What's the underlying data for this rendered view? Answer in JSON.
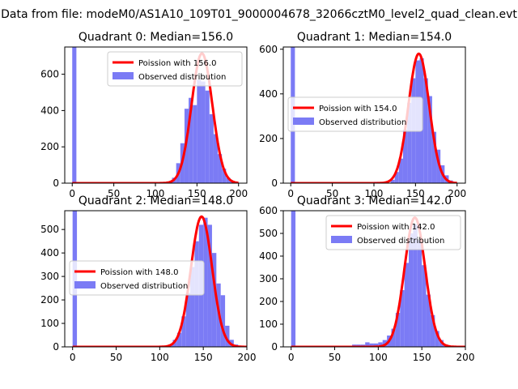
{
  "figure_title": "Data from file: modeM0/AS1A10_109T01_9000004678_32066cztM0_level2_quad_clean.evt",
  "colors": {
    "histogram": "#7b7bf5",
    "poisson_line": "#ff0000",
    "axes": "#000000",
    "background": "#ffffff"
  },
  "chart_data": [
    {
      "type": "bar",
      "title": "Quadrant 0: Median=156.0",
      "legend_position": "top-right",
      "legend": {
        "line_label": "Poission with 156.0",
        "hist_label": "Observed distribution"
      },
      "xlim": [
        -9,
        210
      ],
      "ylim": [
        0,
        750
      ],
      "xticks": [
        0,
        50,
        100,
        150,
        200
      ],
      "yticks": [
        0,
        200,
        400,
        600
      ],
      "mean": 156.0,
      "poisson_peak": 715,
      "zero_bin_count": 750,
      "bins": [
        [
          110,
          2
        ],
        [
          115,
          10
        ],
        [
          120,
          30
        ],
        [
          125,
          110
        ],
        [
          130,
          220
        ],
        [
          135,
          410
        ],
        [
          140,
          470
        ],
        [
          145,
          430
        ],
        [
          150,
          570
        ],
        [
          155,
          560
        ],
        [
          160,
          510
        ],
        [
          165,
          380
        ],
        [
          170,
          270
        ],
        [
          175,
          160
        ],
        [
          180,
          80
        ],
        [
          185,
          30
        ],
        [
          190,
          10
        ],
        [
          195,
          3
        ]
      ]
    },
    {
      "type": "bar",
      "title": "Quadrant 1: Median=154.0",
      "legend_position": "center-left",
      "legend": {
        "line_label": "Poission with 154.0",
        "hist_label": "Observed distribution"
      },
      "xlim": [
        -9,
        210
      ],
      "ylim": [
        0,
        610
      ],
      "xticks": [
        0,
        50,
        100,
        150,
        200
      ],
      "yticks": [
        0,
        200,
        400,
        600
      ],
      "mean": 154.0,
      "poisson_peak": 580,
      "zero_bin_count": 610,
      "bins": [
        [
          95,
          4
        ],
        [
          100,
          6
        ],
        [
          110,
          3
        ],
        [
          120,
          15
        ],
        [
          125,
          50
        ],
        [
          130,
          110
        ],
        [
          135,
          240
        ],
        [
          140,
          360
        ],
        [
          145,
          470
        ],
        [
          150,
          550
        ],
        [
          155,
          560
        ],
        [
          160,
          470
        ],
        [
          165,
          390
        ],
        [
          170,
          230
        ],
        [
          175,
          150
        ],
        [
          180,
          80
        ],
        [
          185,
          35
        ],
        [
          190,
          12
        ],
        [
          195,
          3
        ]
      ]
    },
    {
      "type": "bar",
      "title": "Quadrant 2: Median=148.0",
      "legend_position": "center-left",
      "legend": {
        "line_label": "Poission with 148.0",
        "hist_label": "Observed distribution"
      },
      "xlim": [
        -9,
        200
      ],
      "ylim": [
        0,
        580
      ],
      "xticks": [
        0,
        50,
        100,
        150,
        200
      ],
      "yticks": [
        0,
        100,
        200,
        300,
        400,
        500
      ],
      "mean": 148.0,
      "poisson_peak": 555,
      "zero_bin_count": 580,
      "bins": [
        [
          110,
          10
        ],
        [
          115,
          30
        ],
        [
          120,
          60
        ],
        [
          125,
          130
        ],
        [
          130,
          230
        ],
        [
          135,
          340
        ],
        [
          140,
          450
        ],
        [
          145,
          520
        ],
        [
          150,
          550
        ],
        [
          155,
          520
        ],
        [
          160,
          400
        ],
        [
          165,
          270
        ],
        [
          170,
          220
        ],
        [
          175,
          90
        ],
        [
          180,
          30
        ],
        [
          185,
          10
        ]
      ]
    },
    {
      "type": "bar",
      "title": "Quadrant 3: Median=142.0",
      "legend_position": "top-right",
      "legend": {
        "line_label": "Poission with 142.0",
        "hist_label": "Observed distribution"
      },
      "xlim": [
        -9,
        200
      ],
      "ylim": [
        0,
        600
      ],
      "xticks": [
        0,
        50,
        100,
        150,
        200
      ],
      "yticks": [
        0,
        100,
        200,
        300,
        400,
        500,
        600
      ],
      "mean": 142.0,
      "poisson_peak": 570,
      "zero_bin_count": 600,
      "bins": [
        [
          70,
          10
        ],
        [
          75,
          10
        ],
        [
          80,
          10
        ],
        [
          85,
          20
        ],
        [
          90,
          15
        ],
        [
          95,
          15
        ],
        [
          100,
          20
        ],
        [
          105,
          30
        ],
        [
          110,
          50
        ],
        [
          115,
          80
        ],
        [
          120,
          150
        ],
        [
          125,
          250
        ],
        [
          130,
          370
        ],
        [
          135,
          500
        ],
        [
          140,
          540
        ],
        [
          145,
          470
        ],
        [
          150,
          360
        ],
        [
          155,
          230
        ],
        [
          160,
          140
        ],
        [
          165,
          70
        ],
        [
          170,
          30
        ],
        [
          175,
          10
        ],
        [
          180,
          3
        ]
      ]
    }
  ]
}
